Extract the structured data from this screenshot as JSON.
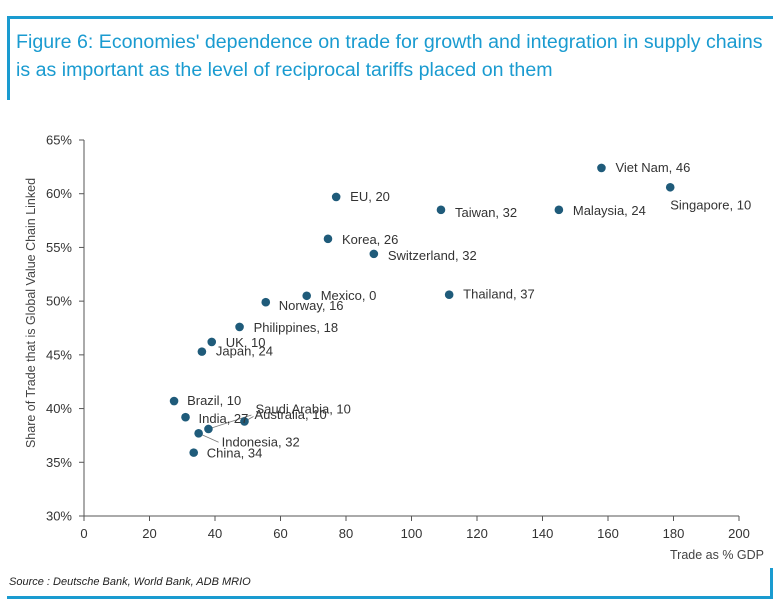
{
  "title": "Figure 6: Economies' dependence on trade for growth and integration in supply chains is as important as the level of reciprocal tariffs placed on them",
  "source": "Source : Deutsche Bank, World Bank, ADB MRIO",
  "colors": {
    "accent": "#1a9bd0",
    "marker": "#1f5b7a",
    "axis": "#555555"
  },
  "chart_data": {
    "type": "scatter",
    "xlabel": "Trade as % GDP",
    "ylabel": "Share of Trade that is Global Value Chain Linked",
    "xlim": [
      0,
      200
    ],
    "ylim": [
      30,
      65
    ],
    "x_ticks": [
      0,
      20,
      40,
      60,
      80,
      100,
      120,
      140,
      160,
      180,
      200
    ],
    "y_ticks": [
      30,
      35,
      40,
      45,
      50,
      55,
      60,
      65
    ],
    "x_tick_labels": [
      "0",
      "20",
      "40",
      "60",
      "80",
      "100",
      "120",
      "140",
      "160",
      "180",
      "200"
    ],
    "y_tick_labels": [
      "30%",
      "35%",
      "40%",
      "45%",
      "50%",
      "55%",
      "60%",
      "65%"
    ],
    "points": [
      {
        "label": "Viet Nam, 46",
        "x": 158,
        "y": 62.4
      },
      {
        "label": "Singapore, 10",
        "x": 179,
        "y": 60.6
      },
      {
        "label": "EU, 20",
        "x": 77,
        "y": 59.7
      },
      {
        "label": "Taiwan, 32",
        "x": 109,
        "y": 58.5
      },
      {
        "label": "Malaysia, 24",
        "x": 145,
        "y": 58.5
      },
      {
        "label": "Korea, 26",
        "x": 74.5,
        "y": 55.8
      },
      {
        "label": "Switzerland, 32",
        "x": 88.5,
        "y": 54.4
      },
      {
        "label": "Mexico, 0",
        "x": 68,
        "y": 50.5
      },
      {
        "label": "Thailand, 37",
        "x": 111.5,
        "y": 50.6
      },
      {
        "label": "Norway, 16",
        "x": 55.5,
        "y": 49.9
      },
      {
        "label": "Philippines, 18",
        "x": 47.5,
        "y": 47.6
      },
      {
        "label": "UK, 10",
        "x": 39,
        "y": 46.2
      },
      {
        "label": "Japan, 24",
        "x": 36,
        "y": 45.3
      },
      {
        "label": "Brazil, 10",
        "x": 27.5,
        "y": 40.7
      },
      {
        "label": "India, 27",
        "x": 31,
        "y": 39.2
      },
      {
        "label": "Saudi Arabia, 10",
        "x": 49,
        "y": 38.8
      },
      {
        "label": "Australia, 10",
        "x": 38,
        "y": 38.1
      },
      {
        "label": "Indonesia, 32",
        "x": 35,
        "y": 37.7
      },
      {
        "label": "China, 34",
        "x": 33.5,
        "y": 35.9
      }
    ]
  }
}
